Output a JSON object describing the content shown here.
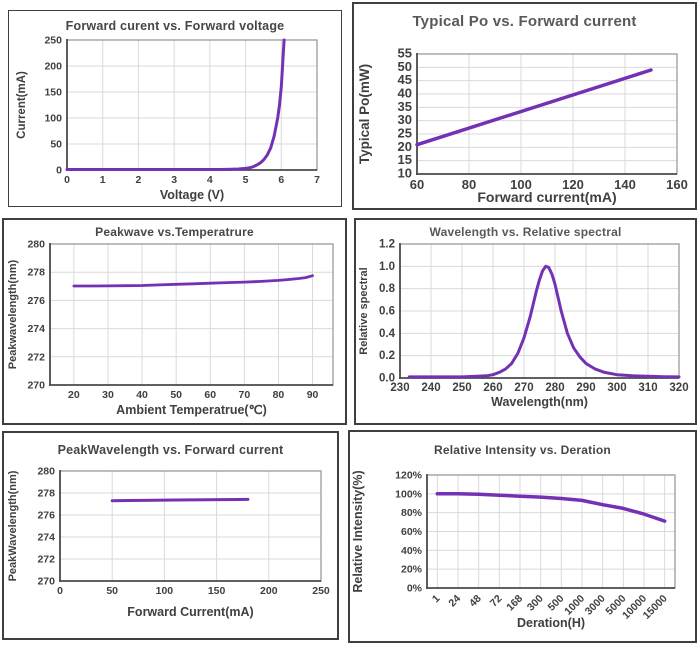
{
  "colors": {
    "curve": "#7431b4",
    "grid": "#d9d9d9",
    "plot_border": "#9a9a9a",
    "axis": "#4d4d4d",
    "tick_label": "#404040",
    "panel_border": "#3f3f3f",
    "background": "#ffffff"
  },
  "chart_data": [
    {
      "id": "forward-current-vs-forward-voltage",
      "type": "line",
      "title": "Forward curent vs. Forward voltage",
      "xlabel": "Voltage  (V)",
      "ylabel": "Current(mA)",
      "xlim": [
        0,
        7
      ],
      "ylim": [
        0,
        250
      ],
      "xticks": [
        0,
        1,
        2,
        3,
        4,
        5,
        6,
        7
      ],
      "yticks": [
        0,
        50,
        100,
        150,
        200,
        250
      ],
      "x": [
        0,
        0.5,
        1,
        1.5,
        2,
        2.5,
        3,
        3.5,
        4,
        4.3,
        4.6,
        4.8,
        5.0,
        5.1,
        5.2,
        5.3,
        5.4,
        5.5,
        5.6,
        5.7,
        5.8,
        5.9,
        5.95,
        6.0,
        6.03,
        6.06,
        6.08
      ],
      "y": [
        1,
        1,
        1,
        1,
        1,
        1,
        1,
        1,
        1,
        1,
        1.5,
        2,
        3,
        4,
        6,
        9,
        13,
        19,
        28,
        42,
        65,
        100,
        125,
        160,
        195,
        228,
        250
      ],
      "grid": true,
      "legend": "none",
      "layout": {
        "l": 58,
        "t": 29,
        "r": 24,
        "b": 36,
        "tick_size": 10.5,
        "label_size": 12.5,
        "ylabel_size": 11.5,
        "ylabel_x": 16,
        "xlabel_dy": 7,
        "line_width": 3
      }
    },
    {
      "id": "typical-po-vs-forward-current",
      "type": "line",
      "title": "Typical Po vs. Forward current",
      "xlabel": "Forward current(mA)",
      "ylabel": "Typical Po(mW)",
      "xlim": [
        60,
        160
      ],
      "ylim": [
        10,
        55
      ],
      "xticks": [
        60,
        80,
        100,
        120,
        140,
        160
      ],
      "yticks": [
        10,
        15,
        20,
        25,
        30,
        35,
        40,
        45,
        50,
        55
      ],
      "x": [
        60,
        150
      ],
      "y": [
        21,
        49
      ],
      "grid": true,
      "legend": "none",
      "layout": {
        "l": 63,
        "t": 50,
        "r": 18,
        "b": 34,
        "tick_size": 13,
        "label_size": 14,
        "ylabel_size": 13.5,
        "ylabel_x": 15,
        "xlabel_dy": 6,
        "tick_dy": 15,
        "line_width": 3.5
      }
    },
    {
      "id": "peakwave-vs-temperature",
      "type": "line",
      "title": "Peakwave vs.Temperatrure",
      "xlabel": "Ambient Temperatrue(℃)",
      "ylabel": "Peakwavelength(nm)",
      "xlim": [
        13,
        96
      ],
      "ylim": [
        270,
        280
      ],
      "xticks": [
        20,
        30,
        40,
        50,
        60,
        70,
        80,
        90
      ],
      "yticks": [
        270,
        272,
        274,
        276,
        278,
        280
      ],
      "x": [
        20,
        25,
        30,
        35,
        40,
        45,
        50,
        55,
        60,
        65,
        70,
        75,
        80,
        83,
        86,
        88,
        90
      ],
      "y": [
        277.02,
        277.02,
        277.03,
        277.04,
        277.06,
        277.1,
        277.14,
        277.18,
        277.22,
        277.26,
        277.3,
        277.35,
        277.42,
        277.48,
        277.55,
        277.62,
        277.75
      ],
      "grid": true,
      "legend": "none",
      "layout": {
        "l": 46,
        "t": 24,
        "r": 12,
        "b": 38,
        "tick_size": 10.5,
        "label_size": 12.5,
        "ylabel_size": 11,
        "ylabel_x": 12,
        "xlabel_dy": 9,
        "line_width": 2.8
      }
    },
    {
      "id": "wavelength-vs-relative-spectral",
      "type": "line",
      "title": "Wavelength vs. Relative spectral",
      "xlabel": "Wavelength(nm)",
      "ylabel": "Relative spectral",
      "xlim": [
        230,
        320
      ],
      "ylim": [
        0,
        1.2
      ],
      "xticks": [
        230,
        240,
        250,
        260,
        270,
        280,
        290,
        300,
        310,
        320
      ],
      "yticks": [
        0,
        0.2,
        0.4,
        0.6,
        0.8,
        1.0,
        1.2
      ],
      "ytick_labels": [
        "0.0",
        "0.2",
        "0.4",
        "0.6",
        "0.8",
        "1.0",
        "1.2"
      ],
      "x": [
        233,
        240,
        250,
        255,
        258,
        260,
        262,
        264,
        266,
        268,
        270,
        272,
        274,
        275,
        276,
        277,
        278,
        279,
        280,
        282,
        284,
        286,
        288,
        290,
        293,
        296,
        300,
        305,
        310,
        315,
        320
      ],
      "y": [
        0.01,
        0.01,
        0.01,
        0.015,
        0.02,
        0.03,
        0.05,
        0.08,
        0.13,
        0.22,
        0.36,
        0.55,
        0.78,
        0.88,
        0.96,
        1.0,
        0.99,
        0.93,
        0.84,
        0.6,
        0.4,
        0.27,
        0.19,
        0.13,
        0.08,
        0.05,
        0.03,
        0.02,
        0.015,
        0.012,
        0.01
      ],
      "grid": true,
      "legend": "none",
      "layout": {
        "l": 44,
        "t": 24,
        "r": 16,
        "b": 45,
        "tick_size": 11.5,
        "label_size": 12.5,
        "ylabel_size": 11,
        "ylabel_x": 11,
        "xlabel_dy": 17,
        "line_width": 3
      }
    },
    {
      "id": "peakwavelength-vs-forward-current",
      "type": "line",
      "title": "PeakWavelength vs. Forward current",
      "xlabel": "Forward Current(mA)",
      "ylabel": "PeakWavelength(nm)",
      "xlim": [
        0,
        250
      ],
      "ylim": [
        270,
        280
      ],
      "xticks": [
        0,
        50,
        100,
        150,
        200,
        250
      ],
      "yticks": [
        270,
        272,
        274,
        276,
        278,
        280
      ],
      "x": [
        50,
        80,
        110,
        140,
        170,
        180
      ],
      "y": [
        277.3,
        277.33,
        277.36,
        277.39,
        277.41,
        277.42
      ],
      "grid": true,
      "legend": "none",
      "layout": {
        "l": 56,
        "t": 38,
        "r": 16,
        "b": 57,
        "tick_size": 10.5,
        "label_size": 12.5,
        "ylabel_size": 11,
        "ylabel_x": 12,
        "xlabel_dy": 22,
        "line_width": 3
      }
    },
    {
      "id": "relative-intensity-vs-deration",
      "type": "line",
      "title": "Relative Intensity vs. Deration",
      "xlabel": "Deration(H)",
      "ylabel": "Relative Intensity(%)",
      "categories": [
        "1",
        "24",
        "48",
        "72",
        "168",
        "300",
        "500",
        "1000",
        "3000",
        "5000",
        "10000",
        "15000"
      ],
      "values": [
        100,
        100,
        99.5,
        98.5,
        97.5,
        96.5,
        95,
        93,
        88.5,
        84.5,
        78.5,
        71
      ],
      "ylim": [
        0,
        120
      ],
      "yticks": [
        0,
        20,
        40,
        60,
        80,
        100,
        120
      ],
      "ytick_labels": [
        "0%",
        "20%",
        "40%",
        "60%",
        "80%",
        "100%",
        "120%"
      ],
      "grid": true,
      "legend": "none",
      "rotated_xticks": true,
      "layout": {
        "l": 77,
        "t": 43,
        "r": 20,
        "b": 53,
        "tick_size": 10.5,
        "label_size": 12.5,
        "ylabel_size": 12.5,
        "ylabel_x": 12,
        "xlabel_dy": 14,
        "line_width": 3.5
      }
    }
  ]
}
